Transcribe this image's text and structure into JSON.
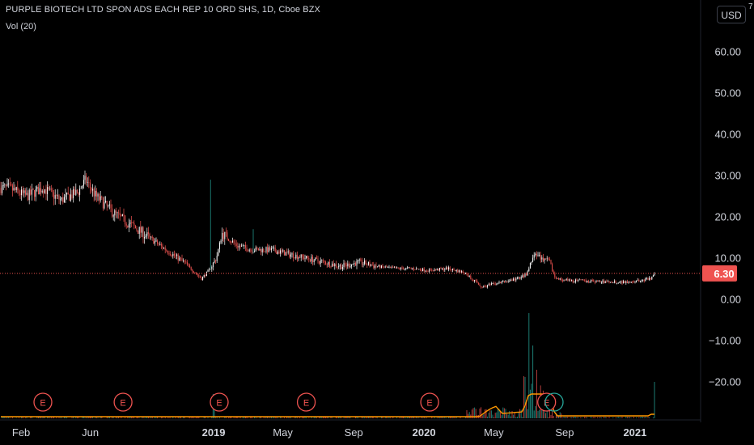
{
  "header": {
    "title": "PURPLE BIOTECH LTD SPON ADS EACH REP 10 ORD SHS, 1D, Cboe BZX",
    "volume_label": "Vol (20)"
  },
  "currency_button": "USD",
  "top_clipped_label": "7",
  "price_axis": {
    "ticks": [
      "60.00",
      "50.00",
      "40.00",
      "30.00",
      "20.00",
      "10.00",
      "0.00",
      "−10.00",
      "−20.00"
    ],
    "tick_values": [
      60,
      50,
      40,
      30,
      20,
      10,
      0,
      -10,
      -20
    ]
  },
  "last_price": {
    "label": "6.30",
    "value": 6.3
  },
  "time_axis": {
    "labels": [
      "Feb",
      "Jun",
      "2019",
      "May",
      "Sep",
      "2020",
      "May",
      "Sep",
      "2021"
    ],
    "bold": [
      false,
      false,
      true,
      false,
      false,
      true,
      false,
      false,
      true
    ]
  },
  "earnings_markers": [
    {
      "label": "E",
      "color": "#ef5350"
    },
    {
      "label": "E",
      "color": "#ef5350"
    },
    {
      "label": "E",
      "color": "#ef5350"
    },
    {
      "label": "E",
      "color": "#ef5350"
    },
    {
      "label": "E",
      "color": "#ef5350"
    },
    {
      "label": "E",
      "color": "#ef5350"
    }
  ],
  "colors": {
    "background": "#000000",
    "up": "#26a69a",
    "down": "#ef5350",
    "candle_white": "#ffffff",
    "price_line": "#ef5350",
    "volume_ma": "#ff9800",
    "dividend": "#26a69a"
  },
  "chart_data": {
    "type": "line",
    "title": "PURPLE BIOTECH LTD SPON ADS EACH REP 10 ORD SHS, 1D, Cboe BZX",
    "ylim": [
      -28,
      72
    ],
    "x_labels": [
      "Feb",
      "Jun",
      "2019",
      "May",
      "Sep",
      "2020",
      "May",
      "Sep",
      "2021"
    ],
    "series": [
      {
        "x": [
          "2018-01-15",
          "2018-02-15",
          "2018-03-15",
          "2018-04-15",
          "2018-05-15",
          "2018-05-28",
          "2018-06-15",
          "2018-07-15",
          "2018-08-15",
          "2018-09-15",
          "2018-10-15",
          "2018-11-15",
          "2018-12-15",
          "2018-12-28",
          "2019-01-10",
          "2019-01-20",
          "2019-02-15",
          "2019-03-15",
          "2019-04-15",
          "2019-05-15",
          "2019-06-15",
          "2019-07-15",
          "2019-08-15",
          "2019-09-15",
          "2019-10-15",
          "2019-11-15",
          "2019-12-15",
          "2020-01-15",
          "2020-02-15",
          "2020-03-15",
          "2020-04-15",
          "2020-05-15",
          "2020-06-15",
          "2020-07-01",
          "2020-07-15",
          "2020-08-10",
          "2020-08-20",
          "2020-09-15",
          "2020-10-15",
          "2020-11-15",
          "2020-12-15",
          "2021-01-15",
          "2021-02-01",
          "2021-02-10"
        ],
        "values": [
          27,
          25,
          27,
          24,
          26,
          29,
          25,
          21,
          18,
          15,
          12,
          9,
          5,
          7,
          10,
          16,
          13,
          12,
          12,
          11,
          10,
          9,
          8,
          9,
          8,
          7.5,
          7.5,
          7,
          7.5,
          6.5,
          3,
          4,
          5,
          6,
          11,
          9,
          5,
          4.5,
          4.5,
          4.2,
          4.2,
          4.5,
          5,
          6.3
        ]
      }
    ]
  }
}
